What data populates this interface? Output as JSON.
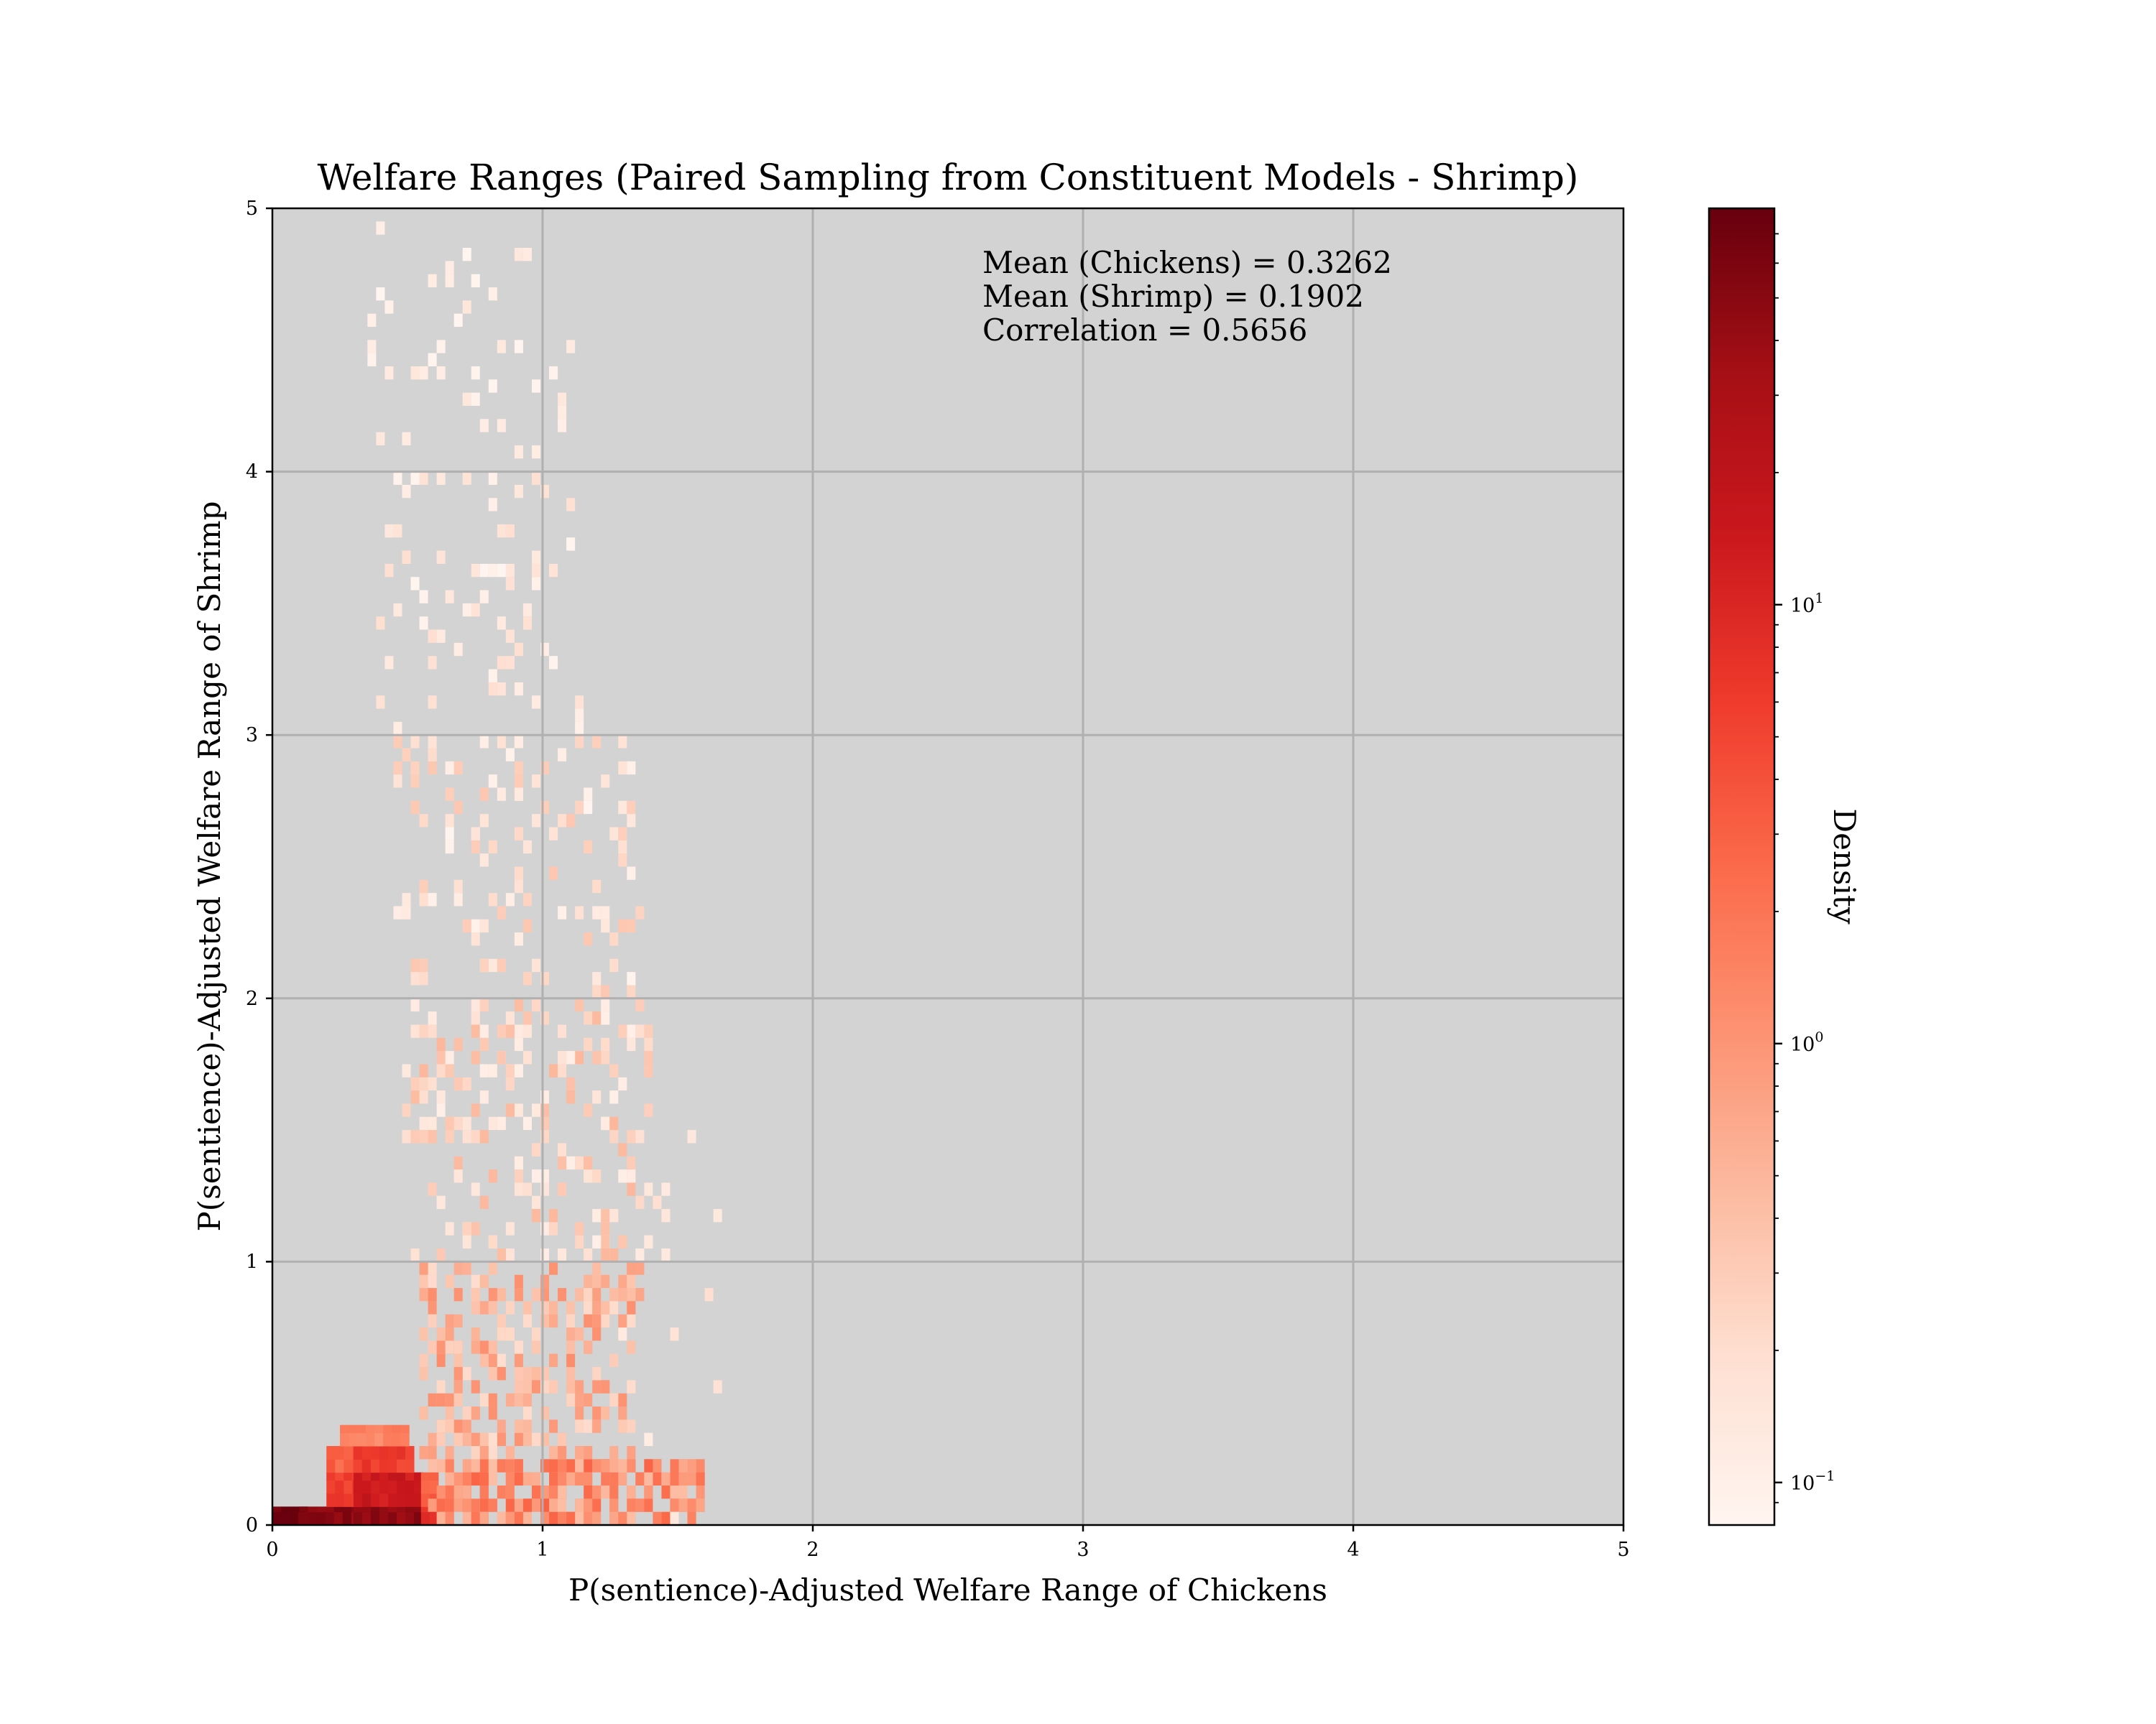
{
  "chart_data": {
    "type": "heatmap",
    "title": "Welfare Ranges (Paired Sampling from Constituent Models - Shrimp)",
    "xlabel": "P(sentience)-Adjusted Welfare Range of Chickens",
    "ylabel": "P(sentience)-Adjusted Welfare Range of Shrimp",
    "xlim": [
      0,
      5
    ],
    "ylim": [
      0,
      5
    ],
    "xticks": [
      "0",
      "1",
      "2",
      "3",
      "4",
      "5"
    ],
    "yticks": [
      "0",
      "1",
      "2",
      "3",
      "4",
      "5"
    ],
    "grid": true,
    "background": "#d3d3d3",
    "colormap": "Reds",
    "annotations": [
      "Mean (Chickens) = 0.3262",
      "Mean (Shrimp) = 0.1902",
      "Correlation = 0.5656"
    ],
    "colorbar": {
      "label": "Density",
      "scale": "log",
      "range": [
        0.08,
        80
      ],
      "ticks": [
        {
          "value": 0.1,
          "base": "10",
          "exp": "−1"
        },
        {
          "value": 1,
          "base": "10",
          "exp": "0"
        },
        {
          "value": 10,
          "base": "10",
          "exp": "1"
        }
      ]
    },
    "bin_width": [
      0.032,
      0.05
    ],
    "regions": [
      {
        "x": [
          0.0,
          0.1
        ],
        "y": [
          0.0,
          0.07
        ],
        "density": 70
      },
      {
        "x": [
          0.1,
          0.3
        ],
        "y": [
          0.0,
          0.07
        ],
        "density": 50
      },
      {
        "x": [
          0.3,
          0.55
        ],
        "y": [
          0.0,
          0.07
        ],
        "density": 45
      },
      {
        "x": [
          0.55,
          0.6
        ],
        "y": [
          0.0,
          0.07
        ],
        "density": 8
      },
      {
        "x": [
          0.2,
          0.3
        ],
        "y": [
          0.07,
          0.2
        ],
        "density": 6
      },
      {
        "x": [
          0.3,
          0.55
        ],
        "y": [
          0.07,
          0.2
        ],
        "density": 15
      },
      {
        "x": [
          0.55,
          0.6
        ],
        "y": [
          0.07,
          0.2
        ],
        "density": 3
      },
      {
        "x": [
          0.2,
          0.3
        ],
        "y": [
          0.2,
          0.3
        ],
        "density": 3
      },
      {
        "x": [
          0.3,
          0.5
        ],
        "y": [
          0.2,
          0.3
        ],
        "density": 6
      },
      {
        "x": [
          0.25,
          0.5
        ],
        "y": [
          0.3,
          0.38
        ],
        "density": 1.5
      }
    ],
    "scatter": [
      {
        "x": [
          0.6,
          1.6
        ],
        "y": [
          0.0,
          0.25
        ],
        "n": 260,
        "density": [
          0.4,
          3
        ]
      },
      {
        "x": [
          0.55,
          1.35
        ],
        "y": [
          0.25,
          1.0
        ],
        "n": 260,
        "density": [
          0.2,
          1.2
        ]
      },
      {
        "x": [
          0.5,
          1.4
        ],
        "y": [
          1.0,
          2.0
        ],
        "n": 200,
        "density": [
          0.1,
          0.5
        ]
      },
      {
        "x": [
          0.45,
          1.35
        ],
        "y": [
          2.0,
          3.0
        ],
        "n": 120,
        "density": [
          0.08,
          0.35
        ]
      },
      {
        "x": [
          0.4,
          1.15
        ],
        "y": [
          3.0,
          4.0
        ],
        "n": 65,
        "density": [
          0.08,
          0.2
        ]
      },
      {
        "x": [
          0.35,
          1.1
        ],
        "y": [
          4.0,
          4.95
        ],
        "n": 40,
        "density": [
          0.08,
          0.15
        ]
      },
      {
        "x": [
          1.3,
          1.65
        ],
        "y": [
          0.0,
          1.6
        ],
        "n": 14,
        "density": [
          0.1,
          0.2
        ]
      }
    ]
  }
}
